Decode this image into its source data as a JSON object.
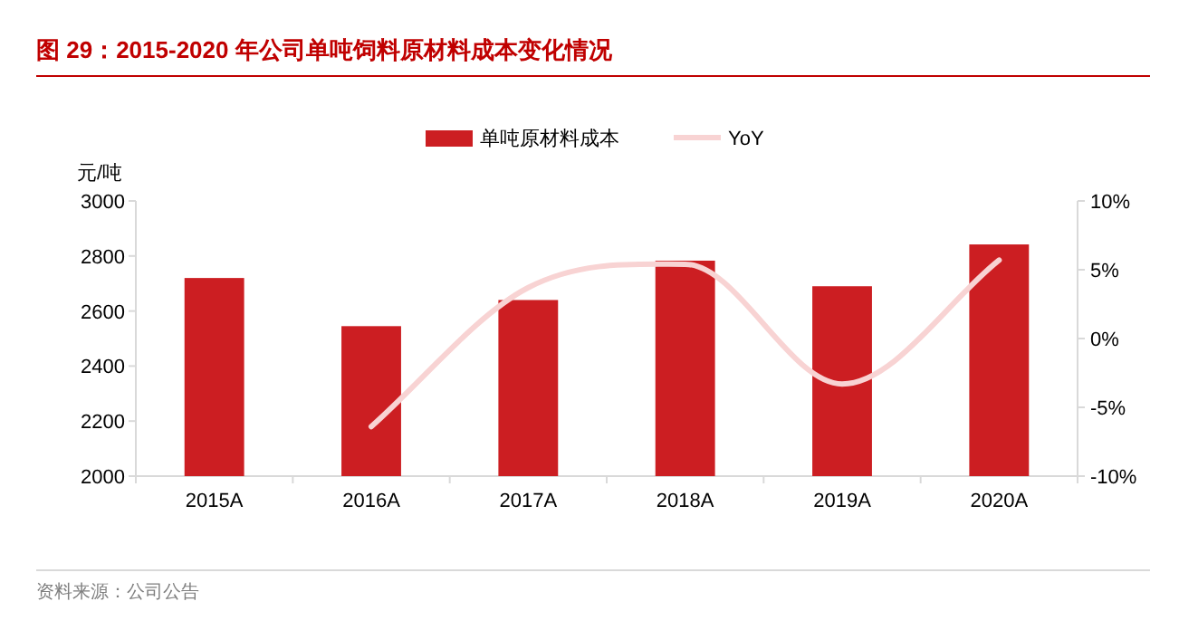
{
  "chart_data": {
    "type": "bar",
    "title": "图 29：2015-2020 年公司单吨饲料原材料成本变化情况",
    "ylabel": "元/吨",
    "annotations": [
      "资料来源：公司公告"
    ],
    "categories": [
      "2015A",
      "2016A",
      "2017A",
      "2018A",
      "2019A",
      "2020A"
    ],
    "series": [
      {
        "name": "单吨原材料成本",
        "color": "#cc1e22",
        "values": [
          2720,
          2545,
          2640,
          2783,
          2690,
          2842
        ]
      },
      {
        "name": "YoY",
        "type": "line",
        "axis": "y2",
        "color": "#f8d3d3",
        "values": [
          null,
          -6.4,
          3.7,
          5.4,
          -3.3,
          5.7
        ]
      }
    ],
    "ylim": [
      2000,
      3000
    ],
    "yticks": [
      2000,
      2200,
      2400,
      2600,
      2800,
      3000
    ],
    "y2lim": [
      -10,
      10
    ],
    "y2ticks": [
      {
        "value": -10,
        "label": "-10%"
      },
      {
        "value": -5,
        "label": "-5%"
      },
      {
        "value": 0,
        "label": "0%"
      },
      {
        "value": 5,
        "label": "5%"
      },
      {
        "value": 10,
        "label": "10%"
      }
    ],
    "legend": "top",
    "marker": "none"
  }
}
